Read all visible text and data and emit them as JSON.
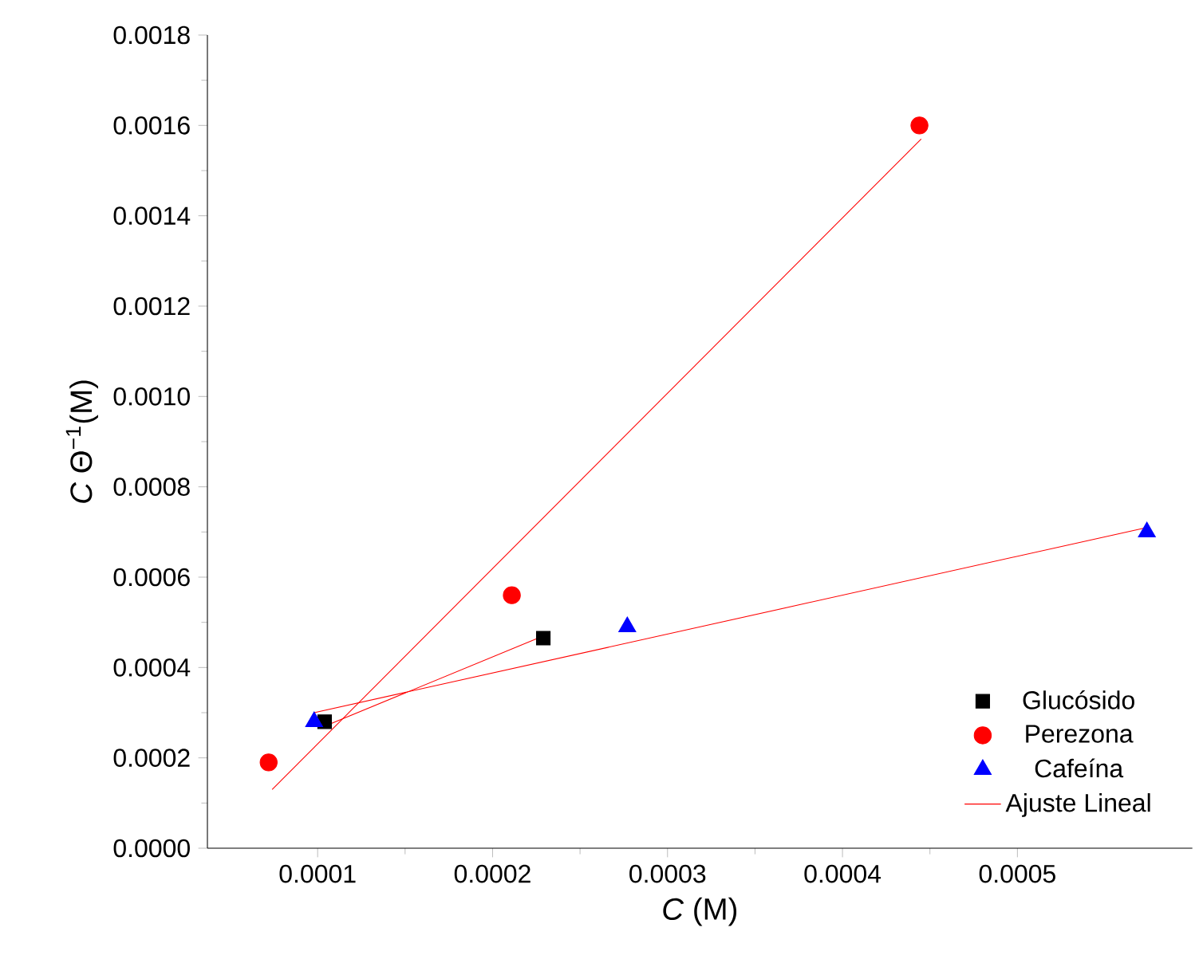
{
  "chart_data": {
    "type": "scatter",
    "xlabel": "*C* (M)",
    "ylabel": "*C* Θ$^{−1}$(M)",
    "xlim": [
      3.7e-05,
      0.0006
    ],
    "ylim": [
      0,
      0.0018
    ],
    "xticks": [
      0.0001,
      0.0002,
      0.0003,
      0.0004,
      0.0005
    ],
    "yticks": [
      {
        "value": 0,
        "label": "0.0000"
      },
      {
        "value": 0.0002,
        "label": "0.0002"
      },
      {
        "value": 0.0004,
        "label": "0.0004"
      },
      {
        "value": 0.0006,
        "label": "0.0006"
      },
      {
        "value": 0.0008,
        "label": "0.0008"
      },
      {
        "value": 0.001,
        "label": "0.0010"
      },
      {
        "value": 0.0012,
        "label": "0.0012"
      },
      {
        "value": 0.0014,
        "label": "0.0014"
      },
      {
        "value": 0.0016,
        "label": "0.0016"
      },
      {
        "value": 0.0018,
        "label": "0.0018"
      }
    ],
    "legend": "bottom right",
    "series": [
      {
        "name": "Glucósido",
        "color": "#000000",
        "marker": "square",
        "x": [
          0.000104,
          0.000229
        ],
        "values": [
          0.00028,
          0.000465
        ]
      },
      {
        "name": "Perezona",
        "color": "#ff0000",
        "marker": "circle",
        "x": [
          7.2e-05,
          0.000211,
          0.000444
        ],
        "values": [
          0.00019,
          0.00056,
          0.0016
        ]
      },
      {
        "name": "Cafeína",
        "color": "#0000ff",
        "marker": "triangle",
        "x": [
          9.8e-05,
          0.000277,
          0.000574
        ],
        "values": [
          0.00028,
          0.00049,
          0.0007
        ]
      },
      {
        "name": "Ajuste Lineal",
        "type": "line",
        "color": "#ff0000",
        "marker": "none",
        "x": [
          7.4e-05,
          0.000445
        ],
        "values": [
          0.00013,
          0.00157
        ]
      },
      {
        "type": "line",
        "color": "#ff0000",
        "marker": "none",
        "x": [
          0.000104,
          0.000229
        ],
        "values": [
          0.00027,
          0.00047
        ]
      },
      {
        "type": "line",
        "color": "#ff0000",
        "marker": "none",
        "x": [
          9.8e-05,
          0.000574
        ],
        "values": [
          0.0003,
          0.00071
        ]
      }
    ]
  }
}
